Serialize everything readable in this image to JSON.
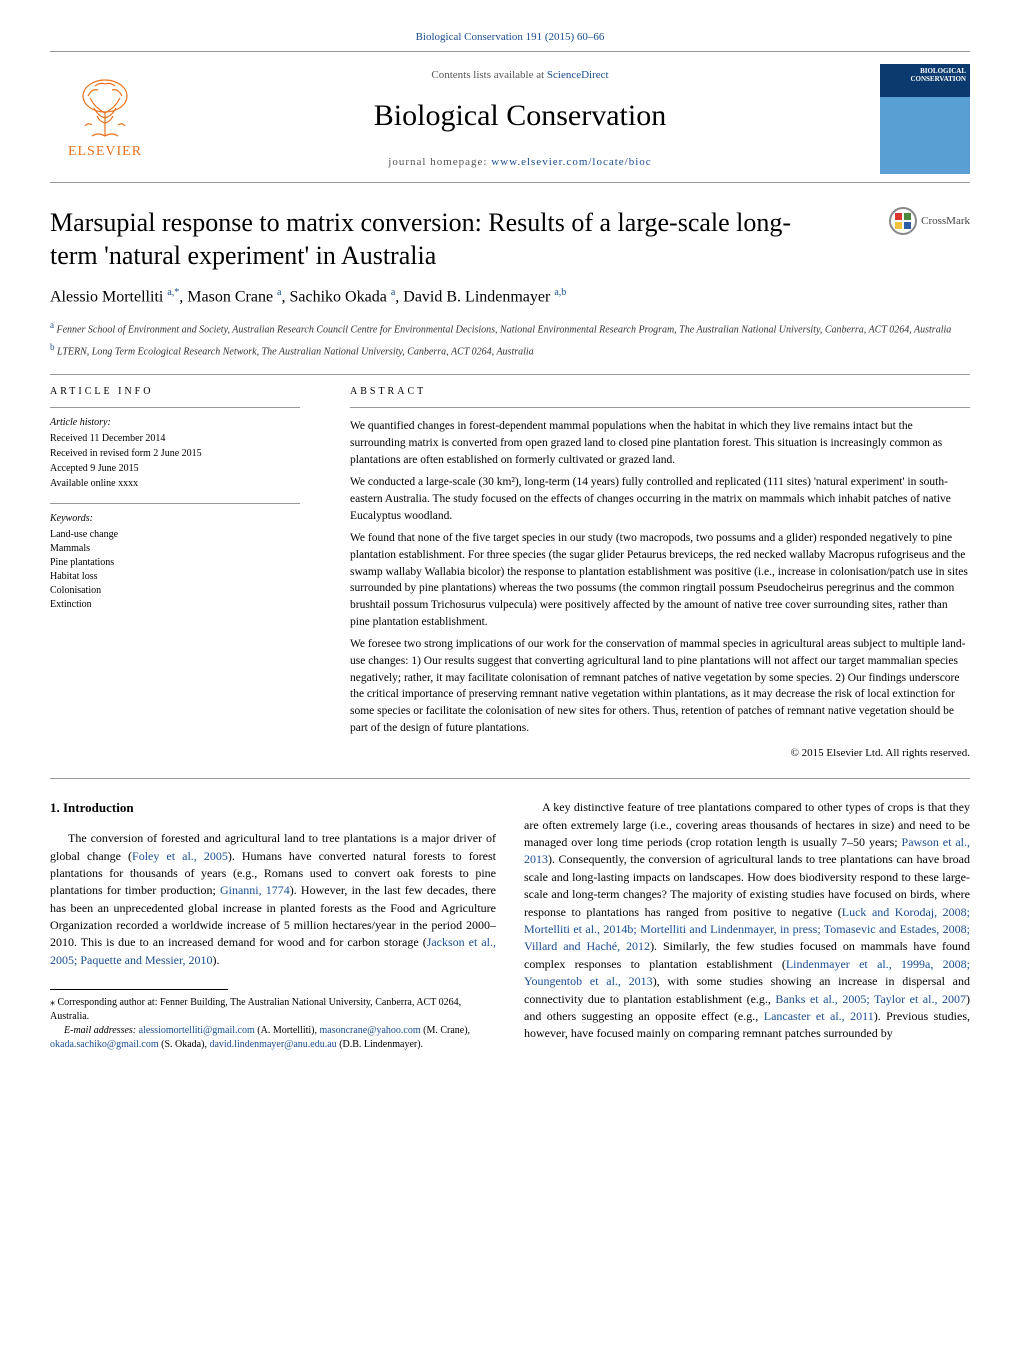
{
  "header": {
    "citation": "Biological Conservation 191 (2015) 60–66",
    "contents_prefix": "Contents lists available at ",
    "contents_link": "ScienceDirect",
    "journal_name": "Biological Conservation",
    "homepage_prefix": "journal homepage: ",
    "homepage_link": "www.elsevier.com/locate/bioc",
    "publisher_name": "ELSEVIER",
    "cover_label": "BIOLOGICAL CONSERVATION"
  },
  "crossmark_label": "CrossMark",
  "title": "Marsupial response to matrix conversion: Results of a large-scale long-term 'natural experiment' in Australia",
  "authors_html": "Alessio Mortelliti <sup>a,*</sup>, Mason Crane <sup>a</sup>, Sachiko Okada <sup>a</sup>, David B. Lindenmayer <sup>a,b</sup>",
  "affiliations": [
    {
      "sup": "a",
      "text": "Fenner School of Environment and Society, Australian Research Council Centre for Environmental Decisions, National Environmental Research Program, The Australian National University, Canberra, ACT 0264, Australia"
    },
    {
      "sup": "b",
      "text": "LTERN, Long Term Ecological Research Network, The Australian National University, Canberra, ACT 0264, Australia"
    }
  ],
  "article_info": {
    "heading": "article info",
    "history_label": "Article history:",
    "history": [
      "Received 11 December 2014",
      "Received in revised form 2 June 2015",
      "Accepted 9 June 2015",
      "Available online xxxx"
    ],
    "keywords_label": "Keywords:",
    "keywords": [
      "Land-use change",
      "Mammals",
      "Pine plantations",
      "Habitat loss",
      "Colonisation",
      "Extinction"
    ]
  },
  "abstract": {
    "heading": "abstract",
    "paragraphs": [
      "We quantified changes in forest-dependent mammal populations when the habitat in which they live remains intact but the surrounding matrix is converted from open grazed land to closed pine plantation forest. This situation is increasingly common as plantations are often established on formerly cultivated or grazed land.",
      "We conducted a large-scale (30 km²), long-term (14 years) fully controlled and replicated (111 sites) 'natural experiment' in south-eastern Australia. The study focused on the effects of changes occurring in the matrix on mammals which inhabit patches of native Eucalyptus woodland.",
      "We found that none of the five target species in our study (two macropods, two possums and a glider) responded negatively to pine plantation establishment. For three species (the sugar glider Petaurus breviceps, the red necked wallaby Macropus rufogriseus and the swamp wallaby Wallabia bicolor) the response to plantation establishment was positive (i.e., increase in colonisation/patch use in sites surrounded by pine plantations) whereas the two possums (the common ringtail possum Pseudocheirus peregrinus and the common brushtail possum Trichosurus vulpecula) were positively affected by the amount of native tree cover surrounding sites, rather than pine plantation establishment.",
      "We foresee two strong implications of our work for the conservation of mammal species in agricultural areas subject to multiple land-use changes: 1) Our results suggest that converting agricultural land to pine plantations will not affect our target mammalian species negatively; rather, it may facilitate colonisation of remnant patches of native vegetation by some species. 2) Our findings underscore the critical importance of preserving remnant native vegetation within plantations, as it may decrease the risk of local extinction for some species or facilitate the colonisation of new sites for others. Thus, retention of patches of remnant native vegetation should be part of the design of future plantations."
    ],
    "copyright": "© 2015 Elsevier Ltd. All rights reserved."
  },
  "introduction": {
    "heading": "1. Introduction",
    "col1_p1_pre": "The conversion of forested and agricultural land to tree plantations is a major driver of global change (",
    "col1_p1_ref1": "Foley et al., 2005",
    "col1_p1_mid1": "). Humans have converted natural forests to forest plantations for thousands of years (e.g., Romans used to convert oak forests to pine plantations for timber production; ",
    "col1_p1_ref2": "Ginanni, 1774",
    "col1_p1_mid2": "). However, in the last few decades, there has been an unprecedented global increase in planted forests as the Food and Agriculture Organization recorded a worldwide increase of 5 million hectares/year in the period 2000–2010. This is due to an increased demand for wood and for carbon storage (",
    "col1_p1_ref3": "Jackson et al., 2005; Paquette and Messier, 2010",
    "col1_p1_post": ").",
    "col2_p1_pre": "A key distinctive feature of tree plantations compared to other types of crops is that they are often extremely large (i.e., covering areas thousands of hectares in size) and need to be managed over long time periods (crop rotation length is usually 7–50 years; ",
    "col2_p1_ref1": "Pawson et al., 2013",
    "col2_p1_mid1": "). Consequently, the conversion of agricultural lands to tree plantations can have broad scale and long-lasting impacts on landscapes. How does biodiversity respond to these large-scale and long-term changes? The majority of existing studies have focused on birds, where response to plantations has ranged from positive to negative (",
    "col2_p1_ref2": "Luck and Korodaj, 2008; Mortelliti et al., 2014b; Mortelliti and Lindenmayer, in press; Tomasevic and Estades, 2008; Villard and Haché, 2012",
    "col2_p1_mid2": "). Similarly, the few studies focused on mammals have found complex responses to plantation establishment (",
    "col2_p1_ref3": "Lindenmayer et al., 1999a, 2008; Youngentob et al., 2013",
    "col2_p1_mid3": "), with some studies showing an increase in dispersal and connectivity due to plantation establishment (e.g., ",
    "col2_p1_ref4": "Banks et al., 2005; Taylor et al., 2007",
    "col2_p1_mid4": ") and others suggesting an opposite effect (e.g., ",
    "col2_p1_ref5": "Lancaster et al., 2011",
    "col2_p1_post": "). Previous studies, however, have focused mainly on comparing remnant patches surrounded by"
  },
  "footnotes": {
    "corr_pre": "⁎ Corresponding author at: Fenner Building, The Australian National University, Canberra, ACT 0264, Australia.",
    "email_label": "E-mail addresses: ",
    "emails": [
      {
        "addr": "alessiomortelliti@gmail.com",
        "name": " (A. Mortelliti), "
      },
      {
        "addr": "masoncrane@yahoo.com",
        "name": " (M. Crane), "
      },
      {
        "addr": "okada.sachiko@gmail.com",
        "name": " (S. Okada), "
      },
      {
        "addr": "david.lindenmayer@anu.edu.au",
        "name": " (D.B. Lindenmayer)."
      }
    ]
  },
  "colors": {
    "link": "#1a4d8f",
    "elsevier": "#e9711c"
  }
}
